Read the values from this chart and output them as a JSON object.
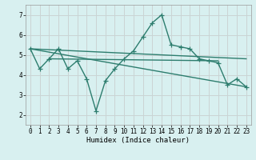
{
  "title": "",
  "xlabel": "Humidex (Indice chaleur)",
  "bg_color": "#d8f0f0",
  "line_color": "#2d7d6e",
  "grid_color": "#c0d8d8",
  "grid_color2": "#e8c8c8",
  "xlim": [
    -0.5,
    23.5
  ],
  "ylim": [
    1.5,
    7.5
  ],
  "yticks": [
    2,
    3,
    4,
    5,
    6,
    7
  ],
  "xticks": [
    0,
    1,
    2,
    3,
    4,
    5,
    6,
    7,
    8,
    9,
    10,
    11,
    12,
    13,
    14,
    15,
    16,
    17,
    18,
    19,
    20,
    21,
    22,
    23
  ],
  "line1_x": [
    0,
    1,
    2,
    3,
    4,
    5,
    6,
    7,
    8,
    9,
    10,
    11,
    12,
    13,
    14,
    15,
    16,
    17,
    18,
    19,
    20,
    21,
    22,
    23
  ],
  "line1_y": [
    5.3,
    4.3,
    4.8,
    5.3,
    4.3,
    4.7,
    3.8,
    2.2,
    3.7,
    4.3,
    4.8,
    5.2,
    5.9,
    6.6,
    7.0,
    5.5,
    5.4,
    5.3,
    4.8,
    4.7,
    4.6,
    3.5,
    3.8,
    3.4
  ],
  "line2_x": [
    0,
    23
  ],
  "line2_y": [
    5.3,
    4.8
  ],
  "line3_x": [
    0,
    23
  ],
  "line3_y": [
    5.3,
    3.4
  ],
  "line4_x": [
    2,
    20
  ],
  "line4_y": [
    4.8,
    4.7
  ]
}
